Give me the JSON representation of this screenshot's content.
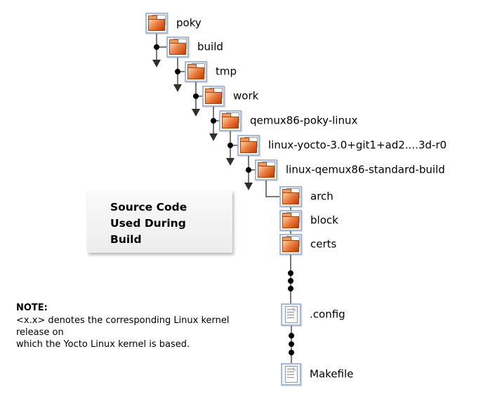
{
  "diagram": {
    "title_box": {
      "lines": [
        "Source Code",
        "Used During",
        "Build"
      ]
    },
    "note": {
      "heading": "NOTE:",
      "lines": [
        "<x.x> denotes the corresponding Linux kernel release on",
        "which the Yocto Linux kernel is based."
      ]
    },
    "tree": {
      "nodes": [
        {
          "label": "poky",
          "type": "folder"
        },
        {
          "label": "build",
          "type": "folder"
        },
        {
          "label": "tmp",
          "type": "folder"
        },
        {
          "label": "work",
          "type": "folder"
        },
        {
          "label": "qemux86-poky-linux",
          "type": "folder"
        },
        {
          "label": "linux-yocto-3.0+git1+ad2....3d-r0",
          "type": "folder"
        },
        {
          "label": "linux-qemux86-standard-build",
          "type": "folder"
        },
        {
          "label": "arch",
          "type": "folder"
        },
        {
          "label": "block",
          "type": "folder"
        },
        {
          "label": "certs",
          "type": "folder"
        },
        {
          "label": ".config",
          "type": "file"
        },
        {
          "label": "Makefile",
          "type": "file"
        }
      ],
      "ellipsis": {
        "dot_count": 3,
        "between": [
          [
            "certs",
            ".config"
          ],
          [
            ".config",
            "Makefile"
          ]
        ]
      }
    },
    "colors": {
      "folder_gradient_start": "#f9d2b0",
      "folder_gradient_end": "#c23803",
      "icon_border": "#a5bad9",
      "connector_line": "#7a7a7a",
      "connector_dot": "#000000",
      "arrow": "#2f2f2f",
      "callout_background": "#ececec"
    }
  }
}
